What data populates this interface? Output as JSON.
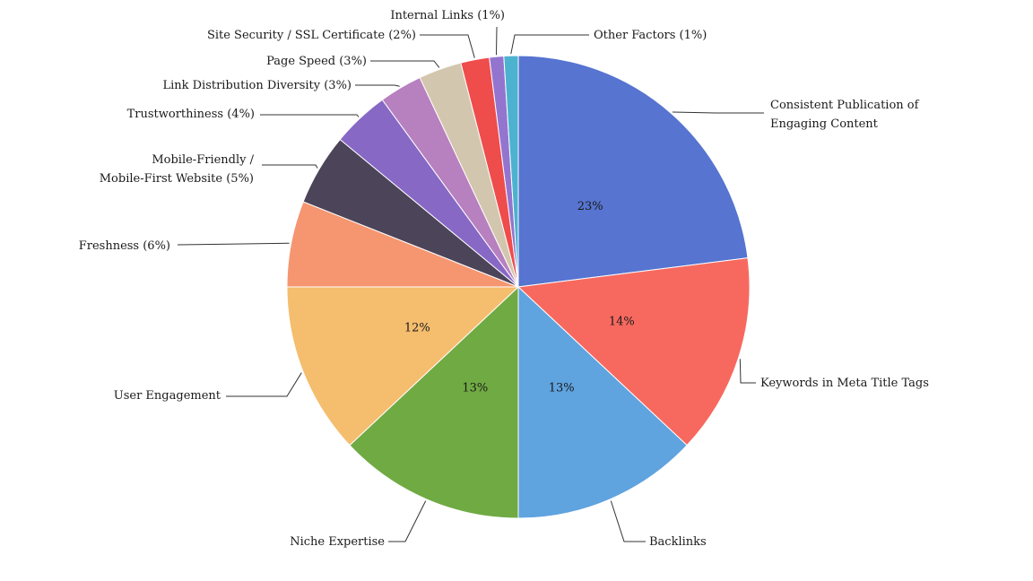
{
  "chart_data": {
    "type": "pie",
    "slices": [
      {
        "label": "Consistent Publication of Engaging Content",
        "value": 23,
        "pct_label": "23%",
        "color": "#5674d0"
      },
      {
        "label": "Keywords in Meta Title Tags",
        "value": 14,
        "pct_label": "14%",
        "color": "#f7695f"
      },
      {
        "label": "Backlinks",
        "value": 13,
        "pct_label": "13%",
        "color": "#5fa3df"
      },
      {
        "label": "Niche Expertise",
        "value": 13,
        "pct_label": "13%",
        "color": "#70aa43"
      },
      {
        "label": "User Engagement",
        "value": 12,
        "pct_label": "12%",
        "color": "#f5bd6e"
      },
      {
        "label": "Freshness (6%)",
        "value": 6,
        "pct_label": "",
        "color": "#f59670"
      },
      {
        "label": "Mobile-Friendly / Mobile-First Website (5%)",
        "value": 5,
        "pct_label": "",
        "color": "#4c4459"
      },
      {
        "label": "Trustworthiness (4%)",
        "value": 4,
        "pct_label": "",
        "color": "#8768c5"
      },
      {
        "label": "Link Distribution Diversity (3%)",
        "value": 3,
        "pct_label": "",
        "color": "#b780bf"
      },
      {
        "label": "Page Speed (3%)",
        "value": 3,
        "pct_label": "",
        "color": "#d3c6ae"
      },
      {
        "label": "Site Security / SSL Certificate (2%)",
        "value": 2,
        "pct_label": "",
        "color": "#ef4c4c"
      },
      {
        "label": "Internal Links (1%)",
        "value": 1,
        "pct_label": "",
        "color": "#9375cf"
      },
      {
        "label": "Other Factors (1%)",
        "value": 1,
        "pct_label": "",
        "color": "#4cb2cf"
      }
    ]
  }
}
